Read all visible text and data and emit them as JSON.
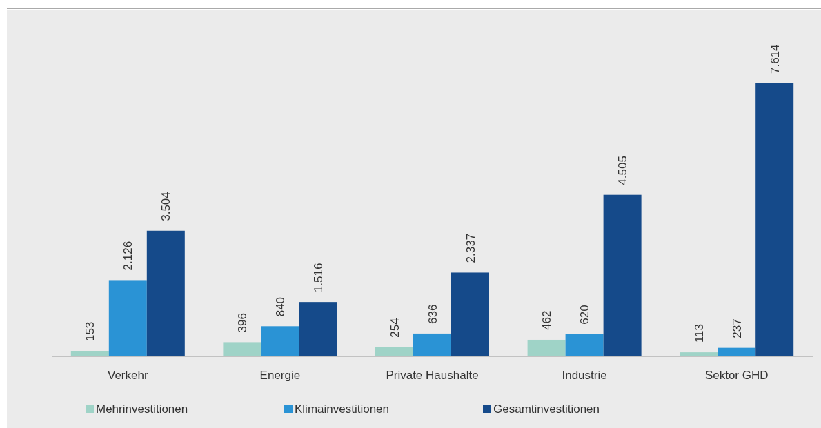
{
  "chart_data": {
    "type": "bar",
    "categories": [
      "Verkehr",
      "Energie",
      "Private Haushalte",
      "Industrie",
      "Sektor GHD"
    ],
    "series": [
      {
        "name": "Mehrinvestitionen",
        "color": "#9fd3c7",
        "values": [
          153,
          396,
          254,
          462,
          113
        ],
        "value_labels": [
          "153",
          "396",
          "254",
          "462",
          "113"
        ]
      },
      {
        "name": "Klimainvestitionen",
        "color": "#2a93d5",
        "values": [
          2126,
          840,
          636,
          620,
          237
        ],
        "value_labels": [
          "2.126",
          "840",
          "636",
          "620",
          "237"
        ]
      },
      {
        "name": "Gesamtinvestitionen",
        "color": "#154a8a",
        "values": [
          3504,
          1516,
          2337,
          4505,
          7614
        ],
        "value_labels": [
          "3.504",
          "1.516",
          "2.337",
          "4.505",
          "7.614"
        ]
      }
    ],
    "legend": "bottom left"
  }
}
